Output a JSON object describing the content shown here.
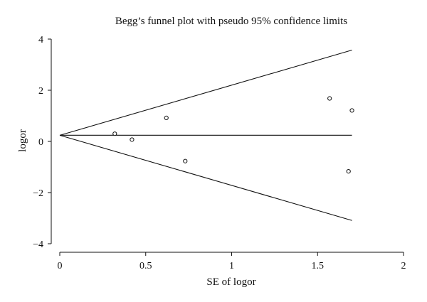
{
  "chart_data": {
    "type": "scatter",
    "title": "Begg’s funnel plot with pseudo 95% confidence limits",
    "xlabel": "SE of logor",
    "ylabel": "logor",
    "xlim": [
      0,
      2
    ],
    "ylim": [
      -4,
      4
    ],
    "x_ticks": [
      {
        "value": 0,
        "label": "0"
      },
      {
        "value": 0.5,
        "label": "0.5"
      },
      {
        "value": 1,
        "label": "1"
      },
      {
        "value": 1.5,
        "label": "1.5"
      },
      {
        "value": 2,
        "label": "2"
      }
    ],
    "y_ticks": [
      {
        "value": 4,
        "label": "4"
      },
      {
        "value": 2,
        "label": "2"
      },
      {
        "value": 0,
        "label": "0"
      },
      {
        "value": -2,
        "label": "−2"
      },
      {
        "value": -4,
        "label": "−4"
      }
    ],
    "points": [
      {
        "x": 0.32,
        "y": 0.3
      },
      {
        "x": 0.42,
        "y": 0.07
      },
      {
        "x": 0.62,
        "y": 0.92
      },
      {
        "x": 0.73,
        "y": -0.77
      },
      {
        "x": 1.57,
        "y": 1.68
      },
      {
        "x": 1.68,
        "y": -1.17
      },
      {
        "x": 1.7,
        "y": 1.21
      }
    ],
    "pooled_estimate": 0.24,
    "line_x_max": 1.7,
    "upper_limit_end": 3.57,
    "lower_limit_end": -3.09,
    "grid": false,
    "legend": "none"
  }
}
